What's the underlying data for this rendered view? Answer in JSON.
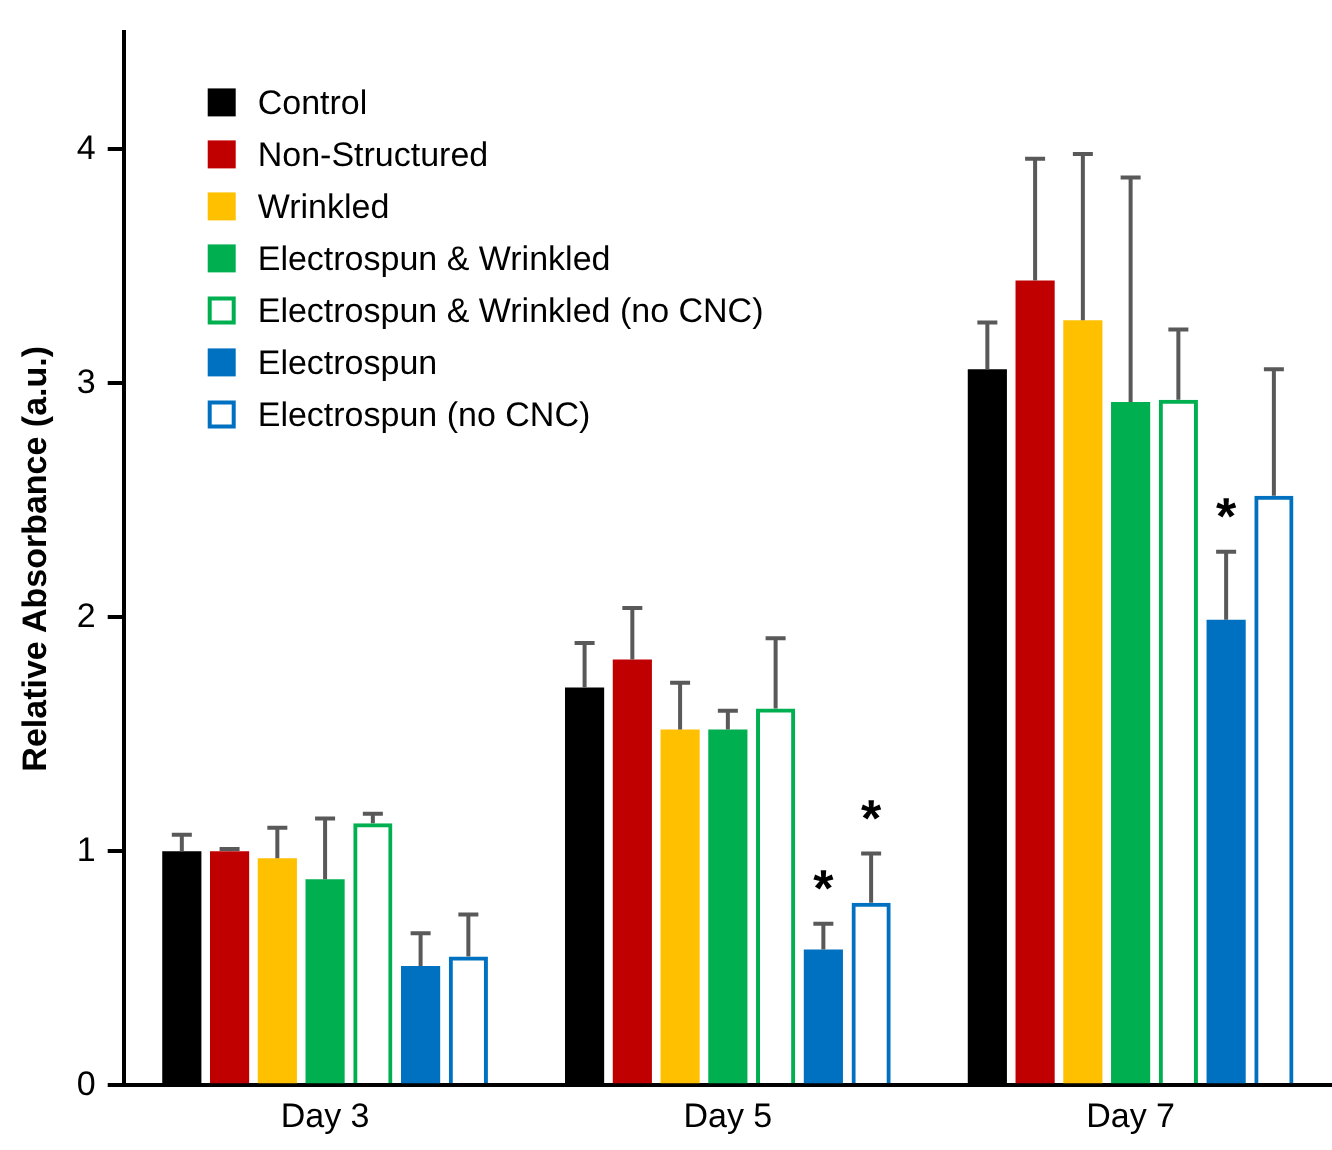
{
  "chart_data": {
    "type": "bar",
    "ylabel": "Relative Absorbance (a.u.)",
    "categories": [
      "Day 3",
      "Day 5",
      "Day 7"
    ],
    "series": [
      {
        "name": "Control",
        "color": "#000000",
        "values": [
          1.0,
          1.7,
          3.06
        ],
        "errors": [
          0.07,
          0.19,
          0.2
        ]
      },
      {
        "name": "Non-Structured",
        "color": "#c00000",
        "values": [
          1.0,
          1.82,
          3.44
        ],
        "errors": [
          0.01,
          0.22,
          0.52
        ]
      },
      {
        "name": "Wrinkled",
        "color": "#ffc000",
        "values": [
          0.97,
          1.52,
          3.27
        ],
        "errors": [
          0.13,
          0.2,
          0.71
        ]
      },
      {
        "name": "Electrospun & Wrinkled",
        "color": "#00b050",
        "values": [
          0.88,
          1.52,
          2.92
        ],
        "errors": [
          0.26,
          0.08,
          0.96
        ]
      },
      {
        "name": "Electrospun & Wrinkled (no CNC)",
        "color": "#00b050",
        "values": [
          1.12,
          1.61,
          2.93
        ],
        "errors": [
          0.04,
          0.3,
          0.3
        ]
      },
      {
        "name": "Electrospun",
        "color": "#0070c0",
        "values": [
          0.51,
          0.58,
          1.99
        ],
        "errors": [
          0.14,
          0.11,
          0.29
        ]
      },
      {
        "name": "Electrospun (no CNC)",
        "color": "#0070c0",
        "values": [
          0.55,
          0.78,
          2.52
        ],
        "errors": [
          0.18,
          0.21,
          0.54
        ]
      }
    ],
    "ylim": [
      0,
      4.5
    ],
    "yticks": [
      0,
      1,
      2,
      3,
      4
    ],
    "grid": false,
    "legend": "top left",
    "annotations": [
      "*",
      "*",
      "*"
    ]
  }
}
